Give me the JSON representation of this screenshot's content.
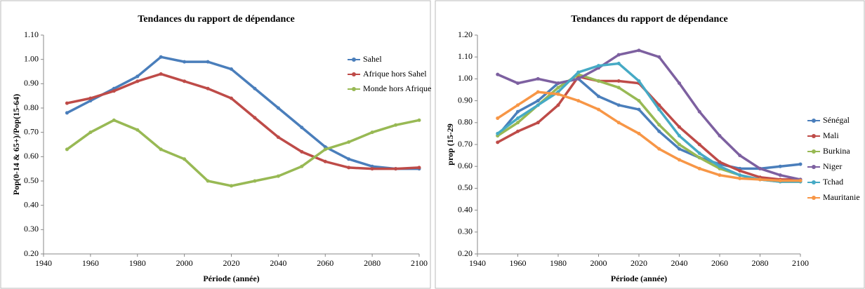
{
  "chart_data": [
    {
      "type": "line",
      "title": "Tendances du rapport de dépendance",
      "xlabel": "Période (année)",
      "ylabel": "Pop(0-14 & 65+)/Pop(15-64)",
      "x": [
        1950,
        1960,
        1970,
        1980,
        1990,
        2000,
        2010,
        2020,
        2030,
        2040,
        2050,
        2060,
        2070,
        2080,
        2090,
        2100
      ],
      "xlim": [
        1940,
        2100
      ],
      "xticks": [
        1940,
        1960,
        1980,
        2000,
        2020,
        2040,
        2060,
        2080,
        2100
      ],
      "ylim": [
        0.2,
        1.1
      ],
      "yticks": [
        {
          "value": 0.2,
          "label": "0.20"
        },
        {
          "value": 0.3,
          "label": "0.30"
        },
        {
          "value": 0.4,
          "label": "0.40"
        },
        {
          "value": 0.5,
          "label": "0.50"
        },
        {
          "value": 0.6,
          "label": "0.60"
        },
        {
          "value": 0.7,
          "label": "0.70"
        },
        {
          "value": 0.8,
          "label": "0.80"
        },
        {
          "value": 0.9,
          "label": "0.90"
        },
        {
          "value": 1.0,
          "label": "1.00"
        },
        {
          "value": 1.1,
          "label": "1.10"
        }
      ],
      "legend": "right",
      "series": [
        {
          "name": "Sahel",
          "color": "#4a7ebb",
          "values": [
            0.78,
            0.83,
            0.88,
            0.93,
            1.01,
            0.99,
            0.99,
            0.96,
            0.88,
            0.8,
            0.72,
            0.64,
            0.59,
            0.56,
            0.55,
            0.55
          ]
        },
        {
          "name": "Afrique hors Sahel",
          "color": "#be4b48",
          "values": [
            0.82,
            0.84,
            0.87,
            0.91,
            0.94,
            0.91,
            0.88,
            0.84,
            0.76,
            0.68,
            0.62,
            0.58,
            0.555,
            0.55,
            0.55,
            0.555
          ]
        },
        {
          "name": "Monde hors Afrique",
          "color": "#98b954",
          "values": [
            0.63,
            0.7,
            0.75,
            0.71,
            0.63,
            0.59,
            0.5,
            0.48,
            0.5,
            0.52,
            0.56,
            0.63,
            0.66,
            0.7,
            0.73,
            0.75
          ]
        }
      ]
    },
    {
      "type": "line",
      "title": "Tendances du rapport de dépendance",
      "xlabel": "Période (année)",
      "ylabel": "prop (15-29",
      "x": [
        1950,
        1960,
        1970,
        1980,
        1990,
        2000,
        2010,
        2020,
        2030,
        2040,
        2050,
        2060,
        2070,
        2080,
        2090,
        2100
      ],
      "xlim": [
        1940,
        2100
      ],
      "xticks": [
        1940,
        1960,
        1980,
        2000,
        2020,
        2040,
        2060,
        2080,
        2100
      ],
      "ylim": [
        0.2,
        1.2
      ],
      "yticks": [
        {
          "value": 0.2,
          "label": "0.20"
        },
        {
          "value": 0.3,
          "label": "0.30"
        },
        {
          "value": 0.4,
          "label": "0.40"
        },
        {
          "value": 0.5,
          "label": "0.50"
        },
        {
          "value": 0.6,
          "label": "0.60"
        },
        {
          "value": 0.7,
          "label": "0.70"
        },
        {
          "value": 0.8,
          "label": "0.80"
        },
        {
          "value": 0.9,
          "label": "0.90"
        },
        {
          "value": 1.0,
          "label": "1.00"
        },
        {
          "value": 1.1,
          "label": "1.10"
        },
        {
          "value": 1.2,
          "label": "1.20"
        }
      ],
      "legend": "right",
      "series": [
        {
          "name": "Sénégal",
          "color": "#4a7ebb",
          "values": [
            0.74,
            0.85,
            0.9,
            0.98,
            1.0,
            0.92,
            0.88,
            0.86,
            0.76,
            0.68,
            0.64,
            0.61,
            0.59,
            0.59,
            0.6,
            0.61
          ]
        },
        {
          "name": "Mali",
          "color": "#be4b48",
          "values": [
            0.71,
            0.76,
            0.8,
            0.88,
            1.01,
            0.99,
            0.99,
            0.98,
            0.88,
            0.78,
            0.7,
            0.62,
            0.58,
            0.55,
            0.54,
            0.54
          ]
        },
        {
          "name": "Burkina",
          "color": "#98b954",
          "values": [
            0.74,
            0.8,
            0.88,
            0.96,
            1.02,
            0.99,
            0.96,
            0.9,
            0.79,
            0.7,
            0.64,
            0.59,
            0.56,
            0.54,
            0.53,
            0.53
          ]
        },
        {
          "name": "Niger",
          "color": "#7d60a0",
          "values": [
            1.02,
            0.98,
            1.0,
            0.98,
            1.0,
            1.05,
            1.11,
            1.13,
            1.1,
            0.98,
            0.85,
            0.74,
            0.65,
            0.59,
            0.56,
            0.54
          ]
        },
        {
          "name": "Tchad",
          "color": "#46aac5",
          "values": [
            0.75,
            0.82,
            0.88,
            0.94,
            1.03,
            1.06,
            1.07,
            0.99,
            0.86,
            0.74,
            0.66,
            0.6,
            0.56,
            0.54,
            0.53,
            0.53
          ]
        },
        {
          "name": "Mauritanie",
          "color": "#f79646",
          "values": [
            0.82,
            0.88,
            0.94,
            0.93,
            0.9,
            0.86,
            0.8,
            0.75,
            0.68,
            0.63,
            0.59,
            0.56,
            0.545,
            0.54,
            0.535,
            0.535
          ]
        }
      ]
    }
  ]
}
